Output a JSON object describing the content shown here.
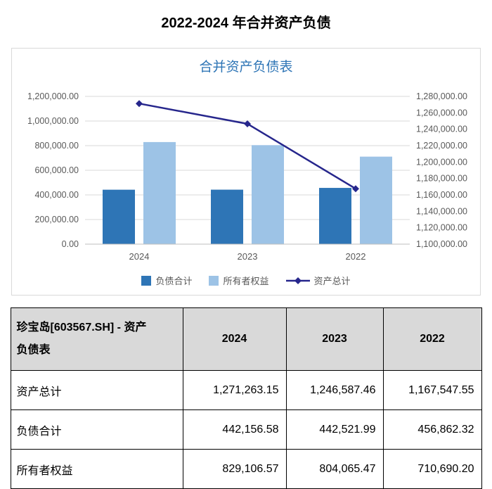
{
  "page": {
    "title": "2022-2024 年合并资产负债"
  },
  "colors": {
    "chart_title": "#2E75B6",
    "bar_liabilities": "#2E75B6",
    "bar_equity": "#9DC3E6",
    "line_assets": "#26268C",
    "table_header_bg": "#D9D9D9",
    "axis_text": "#595959",
    "gridline": "#D9D9D9"
  },
  "chart_data": {
    "type": "combo",
    "title": "合并资产负债表",
    "categories": [
      "2024",
      "2023",
      "2022"
    ],
    "series": [
      {
        "name": "负债合计",
        "type": "bar",
        "axis": "left",
        "color": "#2E75B6",
        "values": [
          442156.58,
          442521.99,
          456862.32
        ]
      },
      {
        "name": "所有者权益",
        "type": "bar",
        "axis": "left",
        "color": "#9DC3E6",
        "values": [
          829106.57,
          804065.47,
          710690.2
        ]
      },
      {
        "name": "资产总计",
        "type": "line",
        "axis": "right",
        "color": "#26268C",
        "values": [
          1271263.15,
          1246587.46,
          1167547.55
        ]
      }
    ],
    "left_axis": {
      "min": 0,
      "max": 1200000,
      "step": 200000
    },
    "right_axis": {
      "min": 1100000,
      "max": 1280000,
      "step": 20000
    },
    "grid": true,
    "legend_position": "bottom"
  },
  "table": {
    "corner_label": "珍宝岛[603567.SH] - 资产负债表",
    "columns": [
      "2024",
      "2023",
      "2022"
    ],
    "rows": [
      {
        "label": "资产总计",
        "values": [
          "1,271,263.15",
          "1,246,587.46",
          "1,167,547.55"
        ]
      },
      {
        "label": "负债合计",
        "values": [
          "442,156.58",
          "442,521.99",
          "456,862.32"
        ]
      },
      {
        "label": "所有者权益",
        "values": [
          "829,106.57",
          "804,065.47",
          "710,690.20"
        ]
      }
    ]
  }
}
